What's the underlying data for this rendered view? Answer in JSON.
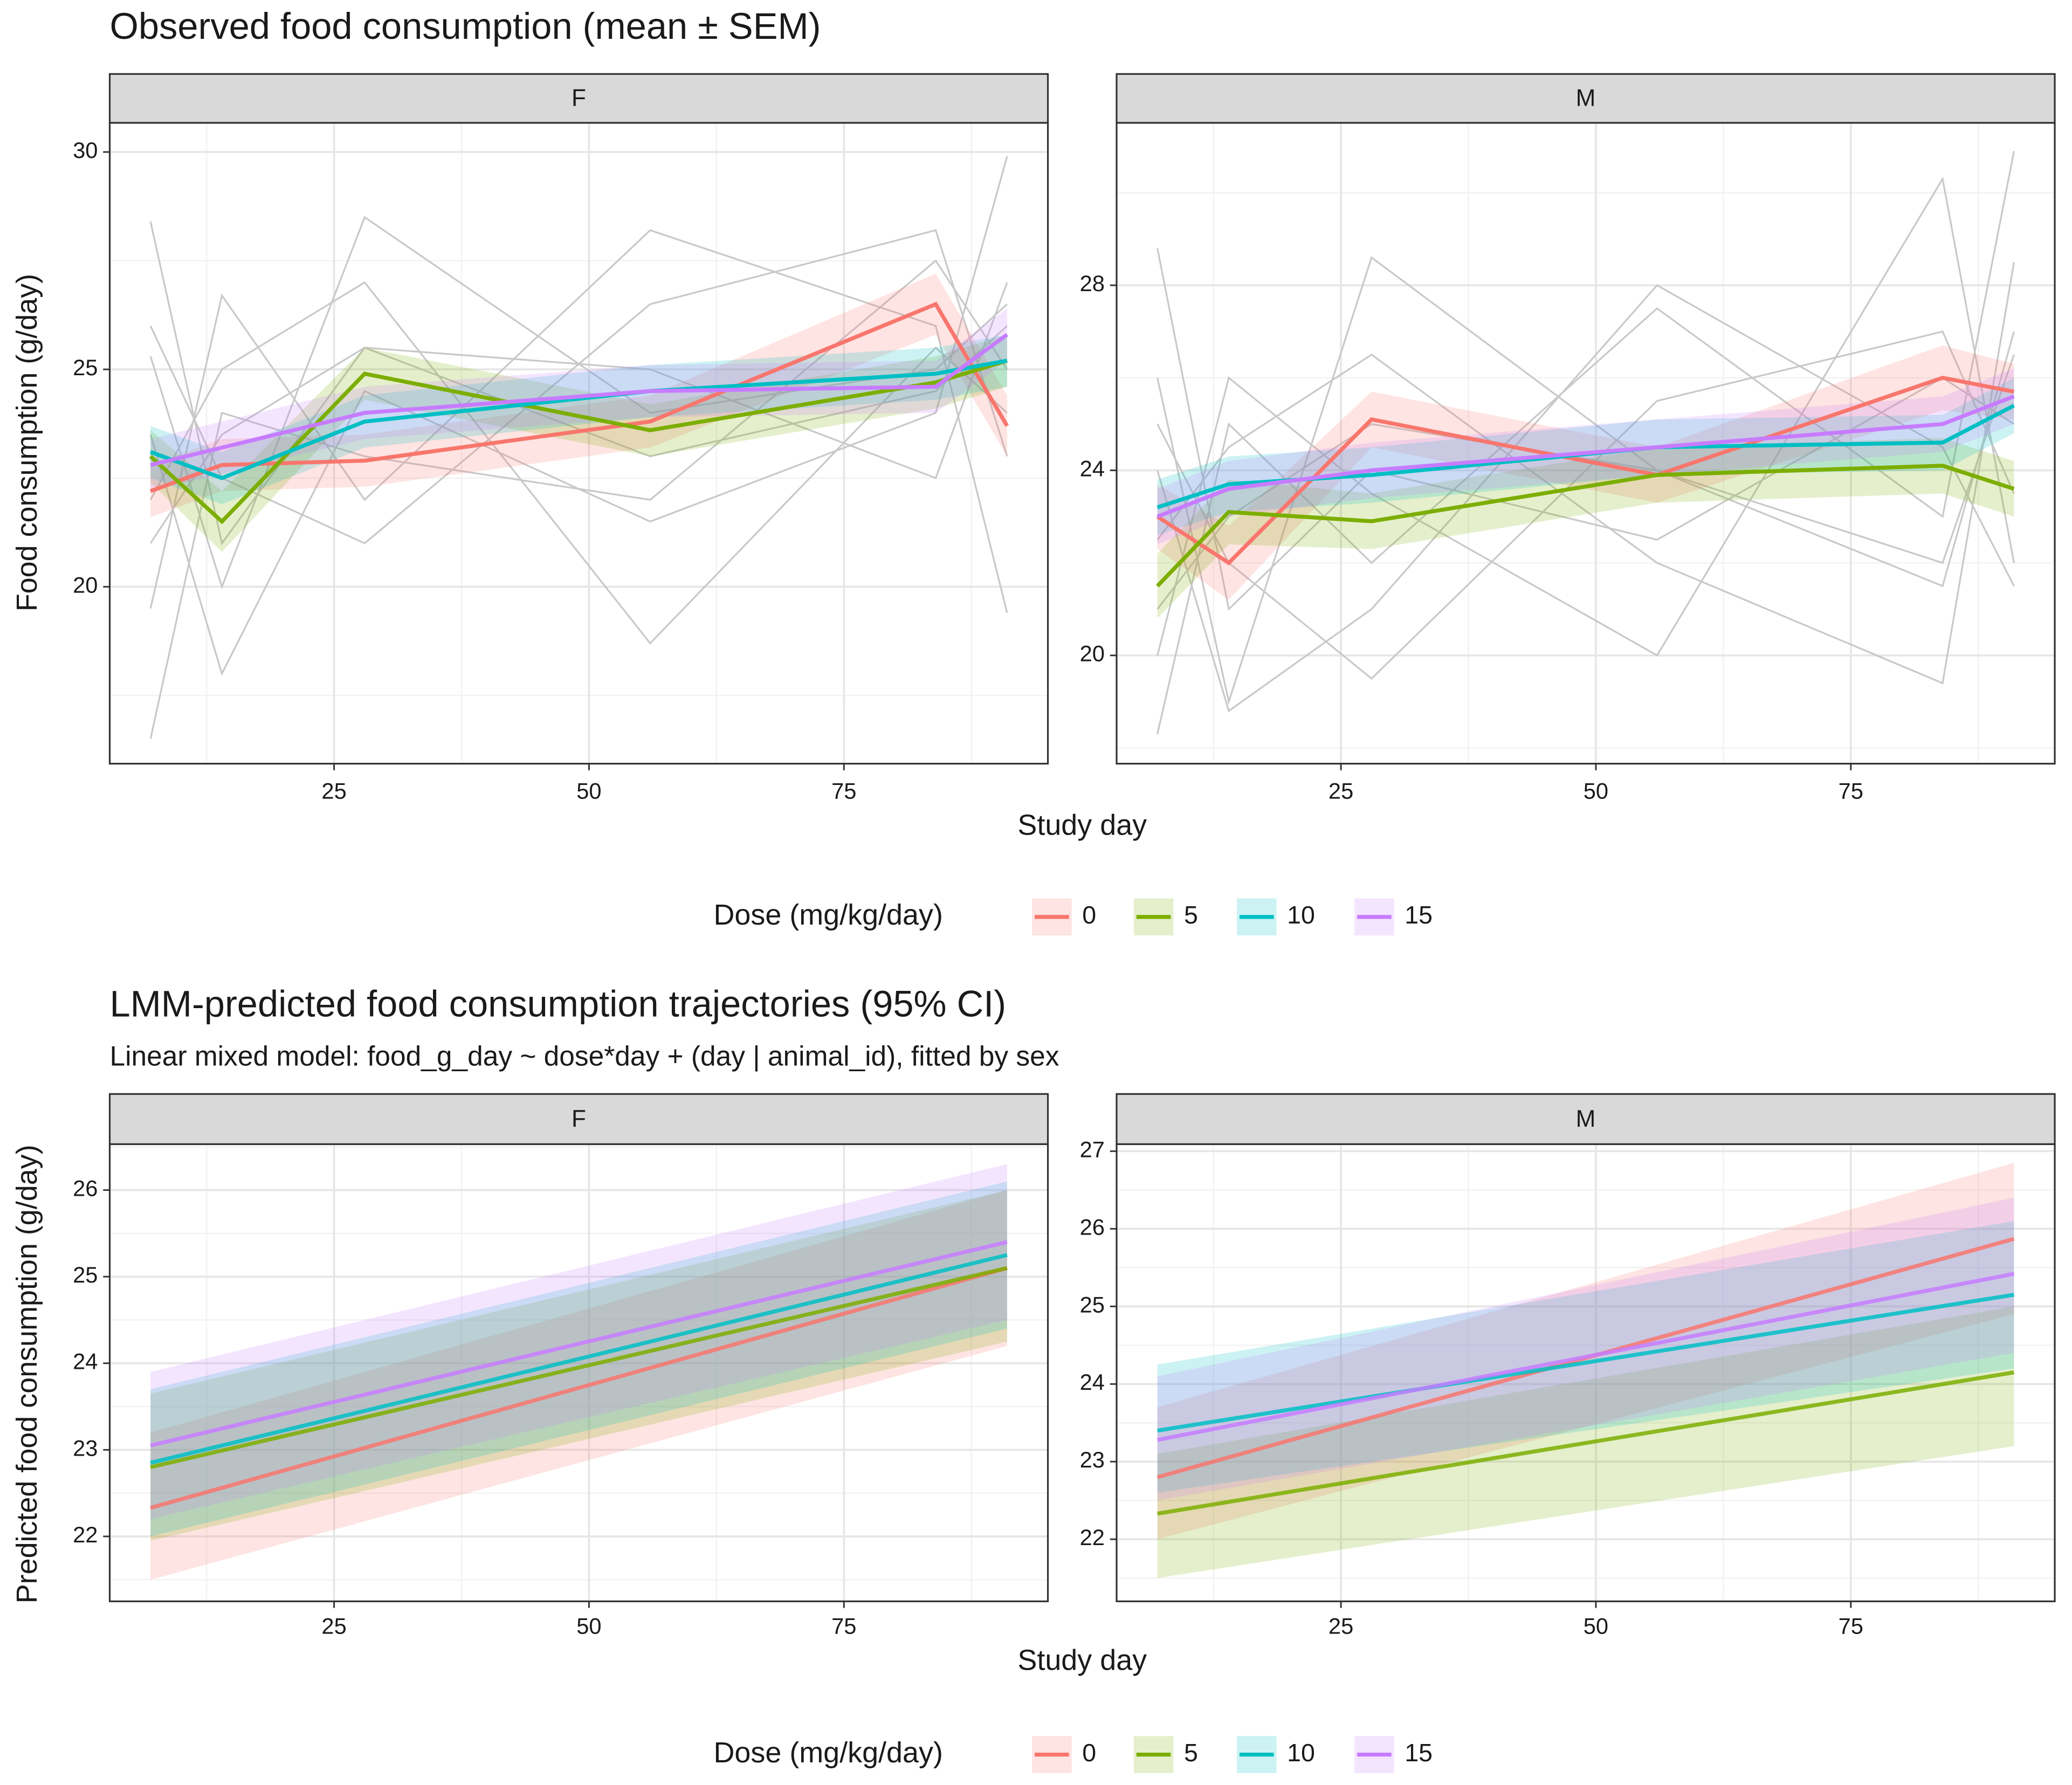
{
  "chart_data": [
    {
      "type": "line",
      "title": "Observed food consumption (mean ± SEM)",
      "x_label": "Study day",
      "y_label": "Food consumption (g/day)",
      "legend_title": "Dose (mg/kg/day)",
      "x": [
        7,
        14,
        28,
        56,
        84,
        91
      ],
      "xlim": [
        3,
        95
      ],
      "xticks": [
        25,
        50,
        75
      ],
      "grid": true,
      "trace_color": "#c8c8c8",
      "panels": [
        {
          "label": "F",
          "ylim": [
            15.93,
            30.67
          ],
          "yticks": [
            20,
            25,
            30
          ],
          "series": [
            {
              "name": "0",
              "color": "#F8766D",
              "values": [
                22.2,
                22.8,
                22.9,
                23.8,
                26.5,
                23.7
              ],
              "errors": [
                0.6,
                0.6,
                0.6,
                0.6,
                0.7,
                0.7
              ]
            },
            {
              "name": "5",
              "color": "#7CAE00",
              "values": [
                23.0,
                21.5,
                24.9,
                23.6,
                24.7,
                25.2
              ],
              "errors": [
                0.6,
                0.7,
                0.6,
                0.6,
                0.6,
                0.6
              ]
            },
            {
              "name": "10",
              "color": "#00BFC4",
              "values": [
                23.1,
                22.5,
                23.8,
                24.5,
                24.9,
                25.2
              ],
              "errors": [
                0.6,
                0.6,
                0.6,
                0.6,
                0.6,
                0.6
              ]
            },
            {
              "name": "15",
              "color": "#C77CFF",
              "values": [
                22.8,
                23.2,
                24.0,
                24.5,
                24.6,
                25.8
              ],
              "errors": [
                0.6,
                0.6,
                0.6,
                0.6,
                0.6,
                0.6
              ]
            }
          ],
          "individual_traces": [
            [
              28.4,
              21.0,
              25.5,
              23.0,
              24.5,
              26.0
            ],
            [
              16.5,
              24.0,
              23.0,
              22.0,
              27.5,
              25.0
            ],
            [
              25.3,
              20.0,
              28.5,
              24.0,
              25.0,
              26.5
            ],
            [
              19.5,
              26.7,
              22.0,
              28.2,
              26.0,
              19.4
            ],
            [
              23.5,
              18.0,
              24.5,
              21.5,
              24.0,
              29.9
            ],
            [
              22.0,
              25.0,
              27.0,
              18.7,
              25.5,
              24.0
            ],
            [
              26.0,
              22.5,
              21.0,
              26.5,
              28.2,
              23.0
            ],
            [
              21.0,
              23.5,
              25.5,
              25.0,
              22.5,
              27.0
            ]
          ]
        },
        {
          "label": "M",
          "ylim": [
            17.66,
            31.51
          ],
          "yticks": [
            20,
            24,
            28
          ],
          "series": [
            {
              "name": "0",
              "color": "#F8766D",
              "values": [
                23.0,
                22.0,
                25.1,
                23.9,
                26.0,
                25.7
              ],
              "errors": [
                0.7,
                0.8,
                0.6,
                0.6,
                0.7,
                0.6
              ]
            },
            {
              "name": "5",
              "color": "#7CAE00",
              "values": [
                21.5,
                23.1,
                22.9,
                23.9,
                24.1,
                23.6
              ],
              "errors": [
                0.7,
                0.7,
                0.6,
                0.6,
                0.6,
                0.6
              ]
            },
            {
              "name": "10",
              "color": "#00BFC4",
              "values": [
                23.2,
                23.7,
                23.9,
                24.5,
                24.6,
                25.4
              ],
              "errors": [
                0.6,
                0.6,
                0.6,
                0.6,
                0.6,
                0.6
              ]
            },
            {
              "name": "15",
              "color": "#C77CFF",
              "values": [
                23.0,
                23.6,
                24.0,
                24.5,
                25.0,
                25.6
              ],
              "errors": [
                0.6,
                0.6,
                0.6,
                0.6,
                0.6,
                0.6
              ]
            }
          ],
          "individual_traces": [
            [
              28.8,
              21.0,
              24.0,
              22.5,
              26.0,
              25.0
            ],
            [
              18.3,
              25.0,
              22.0,
              27.5,
              23.0,
              30.9
            ],
            [
              26.0,
              19.0,
              28.6,
              24.0,
              21.5,
              27.0
            ],
            [
              20.0,
              26.0,
              23.5,
              20.0,
              30.3,
              22.0
            ],
            [
              24.0,
              18.8,
              21.0,
              28.0,
              24.5,
              21.5
            ],
            [
              22.5,
              24.5,
              26.5,
              22.0,
              19.4,
              28.5
            ],
            [
              25.0,
              22.0,
              19.5,
              25.5,
              27.0,
              23.5
            ],
            [
              21.0,
              23.0,
              25.0,
              24.0,
              22.0,
              26.5
            ]
          ]
        }
      ]
    },
    {
      "type": "line",
      "title": "LMM-predicted food consumption trajectories (95% CI)",
      "subtitle": "Linear mixed model: food_g_day ~ dose*day + (day | animal_id), fitted by sex",
      "x_label": "Study day",
      "y_label": "Predicted food consumption (g/day)",
      "legend_title": "Dose (mg/kg/day)",
      "x": [
        7,
        91
      ],
      "xlim": [
        3,
        95
      ],
      "xticks": [
        25,
        50,
        75
      ],
      "grid": true,
      "panels": [
        {
          "label": "F",
          "ylim": [
            21.25,
            26.53
          ],
          "yticks": [
            22,
            23,
            24,
            25,
            26
          ],
          "series": [
            {
              "name": "0",
              "color": "#F8766D",
              "values": [
                22.33,
                25.1
              ],
              "lower": [
                21.5,
                24.2
              ],
              "upper": [
                23.2,
                26.0
              ]
            },
            {
              "name": "5",
              "color": "#7CAE00",
              "values": [
                22.8,
                25.1
              ],
              "lower": [
                21.95,
                24.25
              ],
              "upper": [
                23.65,
                26.0
              ]
            },
            {
              "name": "10",
              "color": "#00BFC4",
              "values": [
                22.85,
                25.25
              ],
              "lower": [
                22.0,
                24.4
              ],
              "upper": [
                23.7,
                26.1
              ]
            },
            {
              "name": "15",
              "color": "#C77CFF",
              "values": [
                23.05,
                25.4
              ],
              "lower": [
                22.2,
                24.5
              ],
              "upper": [
                23.9,
                26.3
              ]
            }
          ]
        },
        {
          "label": "M",
          "ylim": [
            21.2,
            27.09
          ],
          "yticks": [
            22,
            23,
            24,
            25,
            26,
            27
          ],
          "series": [
            {
              "name": "0",
              "color": "#F8766D",
              "values": [
                22.8,
                25.87
              ],
              "lower": [
                22.0,
                24.9
              ],
              "upper": [
                23.7,
                26.85
              ]
            },
            {
              "name": "5",
              "color": "#7CAE00",
              "values": [
                22.33,
                24.15
              ],
              "lower": [
                21.5,
                23.2
              ],
              "upper": [
                23.1,
                25.0
              ]
            },
            {
              "name": "10",
              "color": "#00BFC4",
              "values": [
                23.4,
                25.15
              ],
              "lower": [
                22.6,
                24.2
              ],
              "upper": [
                24.25,
                26.1
              ]
            },
            {
              "name": "15",
              "color": "#C77CFF",
              "values": [
                23.28,
                25.42
              ],
              "lower": [
                22.5,
                24.4
              ],
              "upper": [
                24.1,
                26.4
              ]
            }
          ]
        }
      ]
    }
  ]
}
